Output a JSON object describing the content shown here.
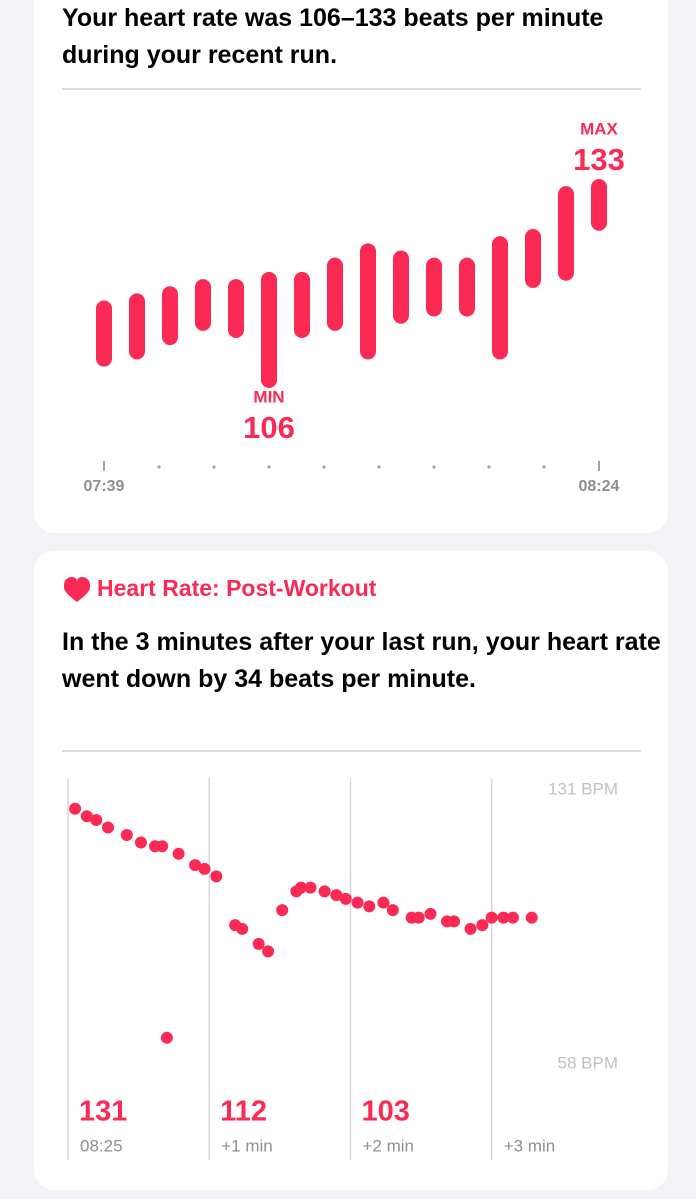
{
  "card1": {
    "summary": "Your heart rate was 106–133 beats per minute during your recent run."
  },
  "card2": {
    "heading": "Heart Rate: Post-Workout",
    "summary": "In the 3 minutes after your last run, your heart rate went down by 34 beats per minute."
  },
  "chart_data": [
    {
      "type": "range-bar",
      "color": "#fa2a55",
      "low": [
        109,
        110,
        112,
        114,
        113,
        106,
        113,
        114,
        110,
        115,
        116,
        116,
        110,
        120,
        121,
        128
      ],
      "high": [
        116,
        117,
        118,
        119,
        119,
        120,
        120,
        122,
        124,
        123,
        122,
        122,
        125,
        126,
        132,
        133
      ],
      "max_label": "MAX",
      "max_value": 133,
      "min_label": "MIN",
      "min_value": 106,
      "x_labels": [
        "07:39",
        "08:24"
      ]
    },
    {
      "type": "scatter",
      "color": "#fa2a55",
      "x": [
        3,
        8,
        12,
        17,
        25,
        31,
        37,
        40,
        42,
        47,
        54,
        58,
        63,
        71,
        74,
        81,
        85,
        91,
        97,
        99,
        103,
        109,
        114,
        118,
        123,
        128,
        134,
        138,
        146,
        149,
        154,
        161,
        164,
        171,
        176,
        180,
        185,
        189,
        197
      ],
      "values": [
        126,
        124,
        123,
        121,
        119,
        117,
        116,
        116,
        65,
        114,
        111,
        110,
        108,
        95,
        94,
        90,
        88,
        99,
        104,
        105,
        105,
        104,
        103,
        102,
        101,
        100,
        101,
        99,
        97,
        97,
        98,
        96,
        96,
        94,
        95,
        97,
        97,
        97,
        97
      ],
      "xlim": [
        0,
        243
      ],
      "xticks": [
        {
          "value": 0,
          "label": "08:25"
        },
        {
          "value": 60,
          "label": "+1 min"
        },
        {
          "value": 120,
          "label": "+2 min"
        },
        {
          "value": 180,
          "label": "+3 min"
        }
      ],
      "ylim": [
        58,
        131
      ],
      "yticks": [
        {
          "value": 131,
          "label": "131 BPM"
        },
        {
          "value": 58,
          "label": "58 BPM"
        }
      ],
      "minute_values": [
        131,
        112,
        103
      ]
    }
  ]
}
